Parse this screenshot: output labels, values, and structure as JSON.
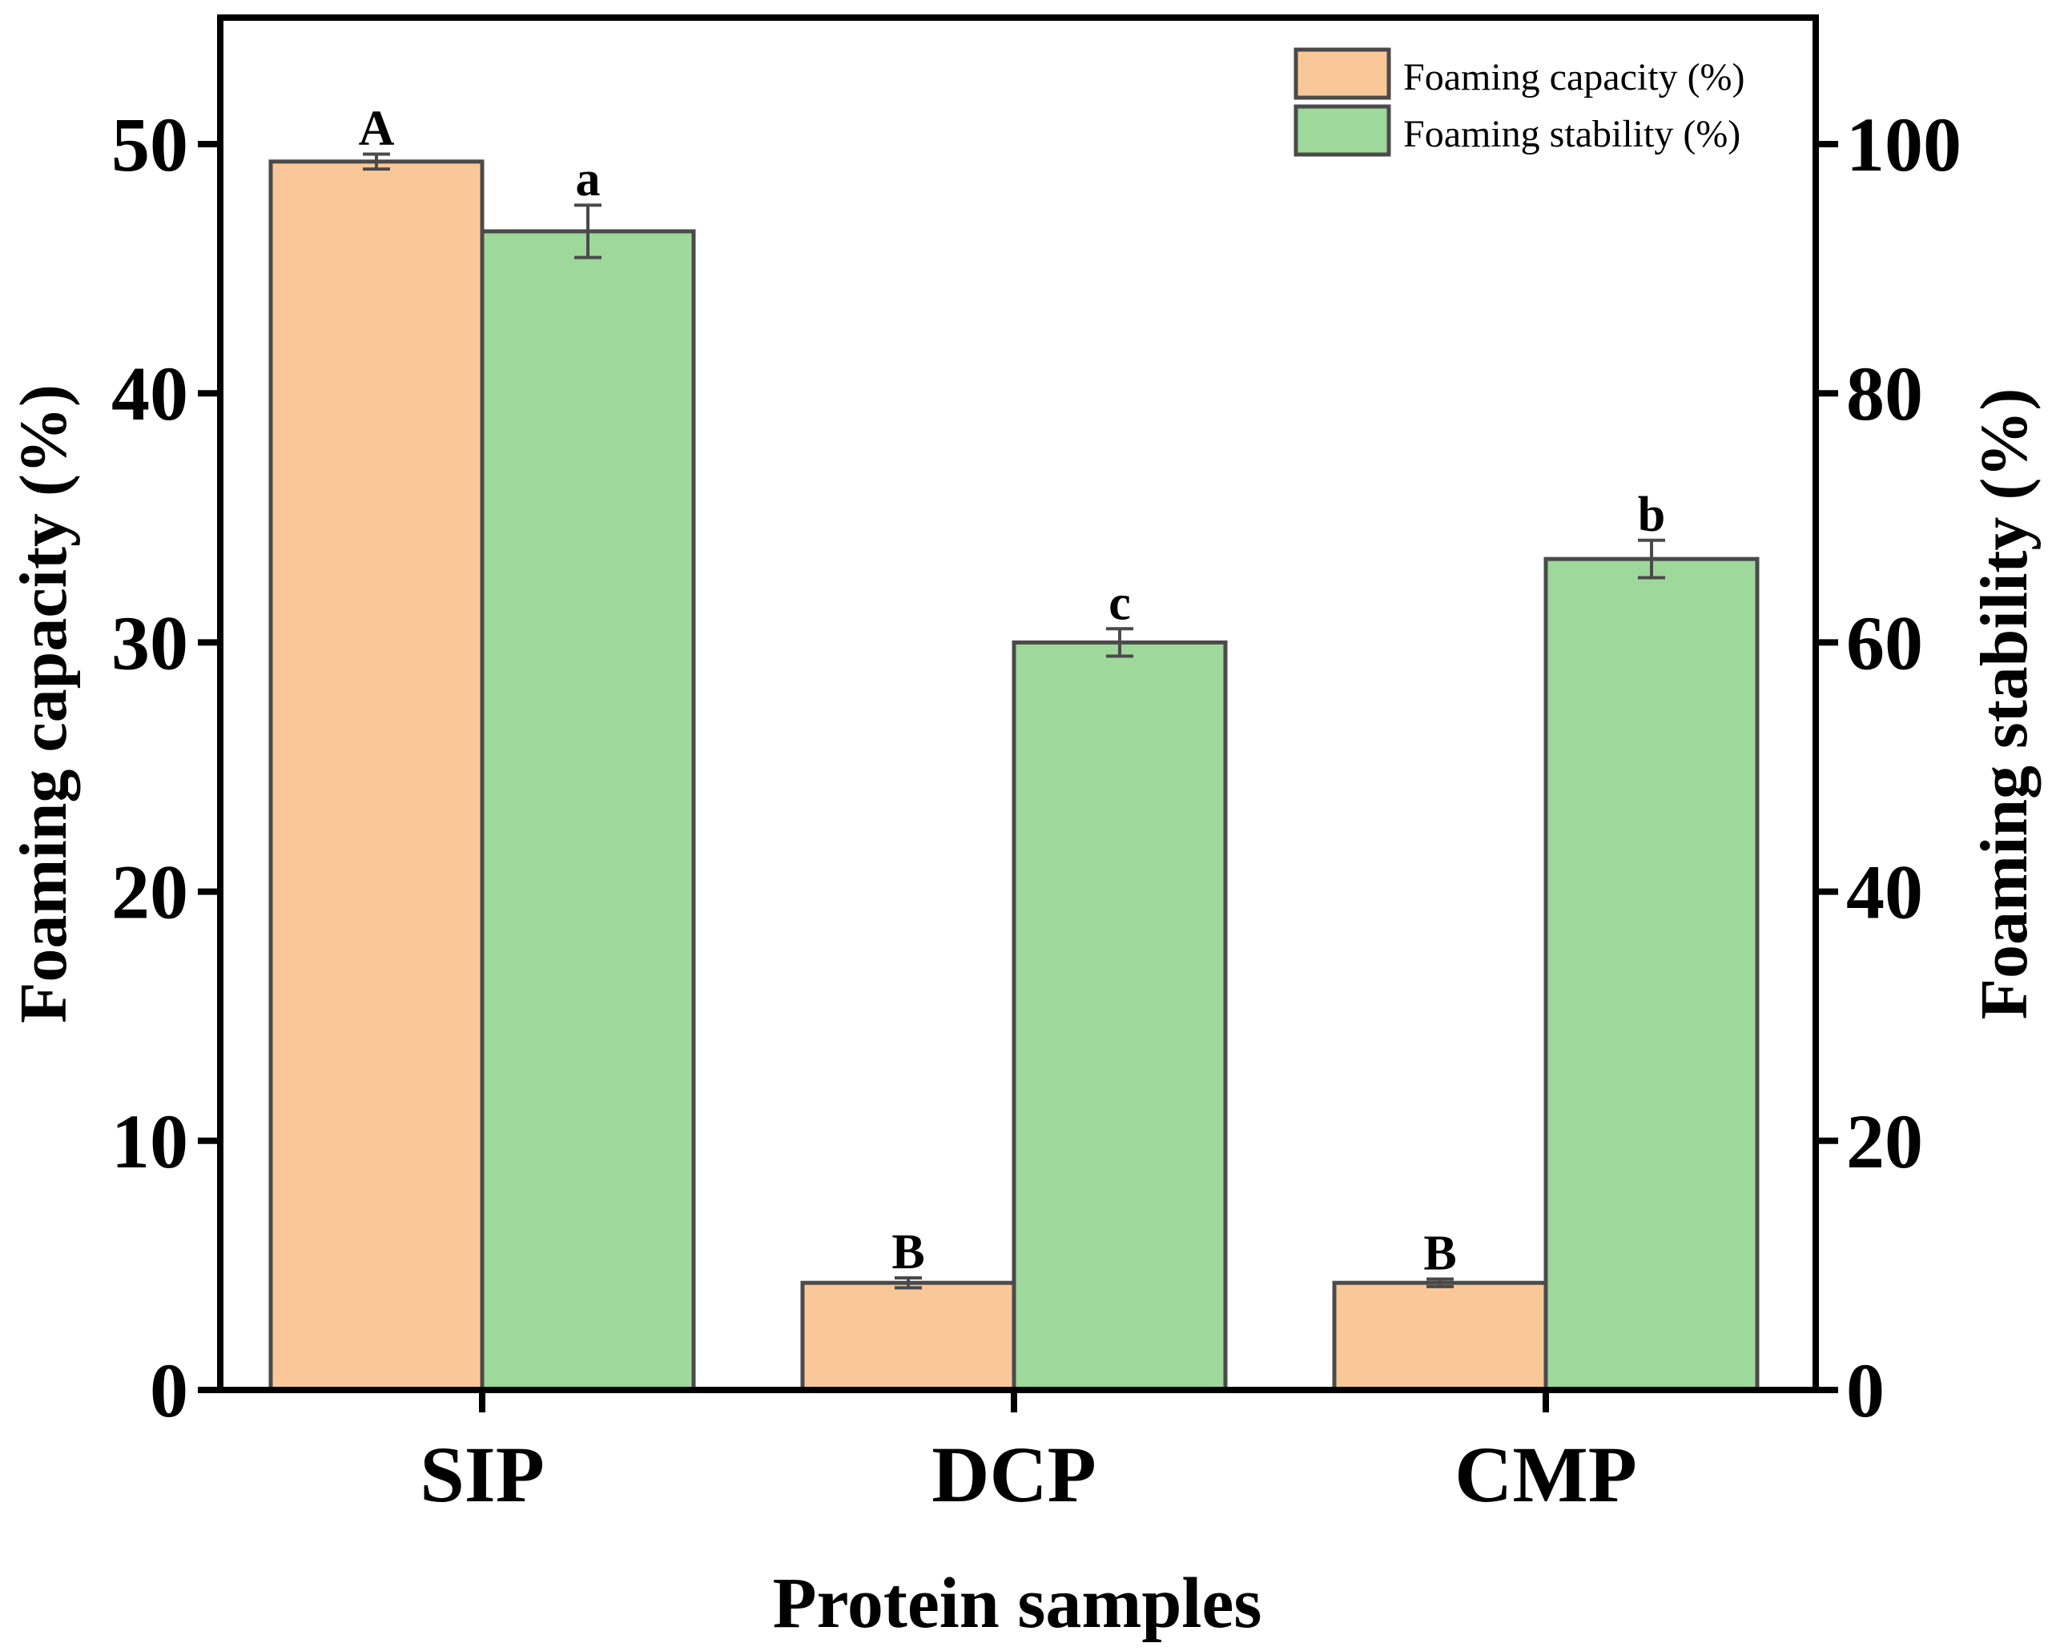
{
  "chart_data": {
    "type": "bar",
    "categories": [
      "SIP",
      "DCP",
      "CMP"
    ],
    "series": [
      {
        "name": "Foaming capacity (%)",
        "axis": "left",
        "color": "#FAC898",
        "values": [
          49.3,
          4.3,
          4.3
        ],
        "errors": [
          0.3,
          0.2,
          0.15
        ],
        "labels": [
          "A",
          "B",
          "B"
        ]
      },
      {
        "name": "Foaming stability (%)",
        "axis": "right",
        "color": "#9ED89B",
        "values": [
          93.0,
          60.0,
          66.7
        ],
        "errors": [
          2.1,
          1.1,
          1.5
        ],
        "labels": [
          "a",
          "c",
          "b"
        ]
      }
    ],
    "xlabel": "Protein samples",
    "ylabel_left": "Foaming capacity (%)",
    "ylabel_right": "Foaming stability (%)",
    "ylim_left": [
      0,
      55
    ],
    "ylim_right": [
      0,
      110
    ],
    "yticks_left": [
      "0",
      "10",
      "20",
      "30",
      "40",
      "50"
    ],
    "yticks_right": [
      "0",
      "20",
      "40",
      "60",
      "80",
      "100"
    ],
    "legend_position": "top-right",
    "grid": false
  },
  "colors": {
    "bar_edge": "#4a4a4a",
    "axis": "#000000"
  }
}
